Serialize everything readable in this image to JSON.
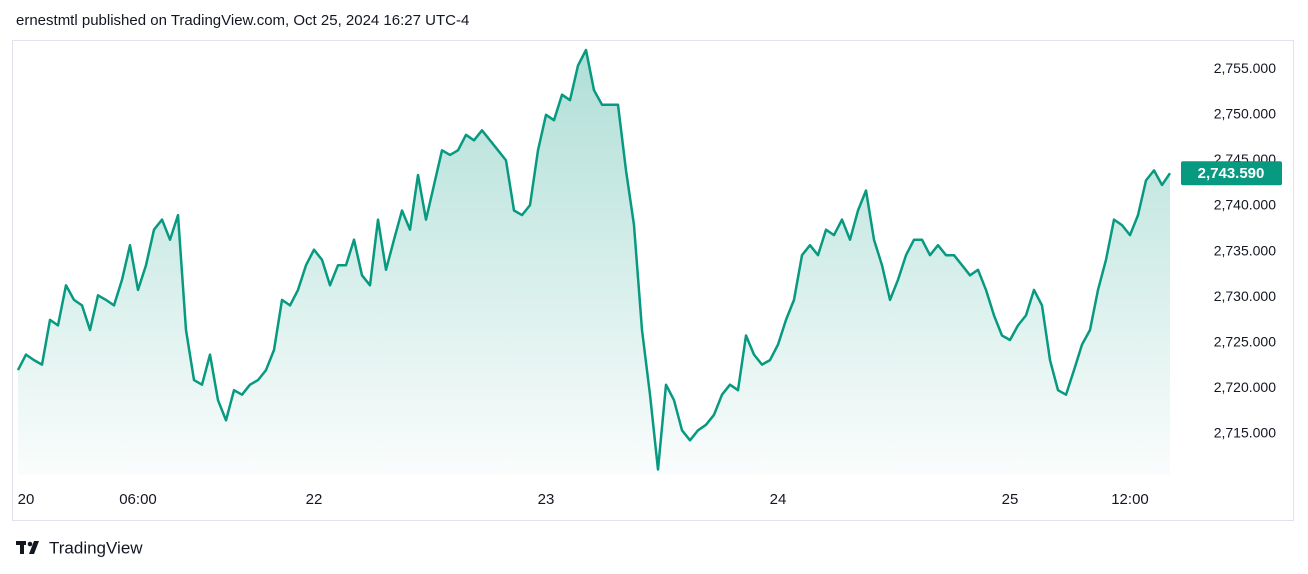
{
  "header": "ernestmtl published on TradingView.com, Oct 25, 2024 16:27 UTC-4",
  "footer": "TradingView",
  "chart_data": {
    "type": "area",
    "color": "#089981",
    "categories": [
      null,
      "20",
      null,
      null,
      null,
      null,
      null,
      null,
      null,
      null,
      null,
      null,
      null,
      null,
      null,
      "06:00",
      null,
      null,
      null,
      null,
      null,
      null,
      null,
      null,
      null,
      null,
      null,
      null,
      null,
      null,
      null,
      null,
      null,
      null,
      null,
      null,
      null,
      "22",
      null,
      null,
      null,
      null,
      null,
      null,
      null,
      null,
      null,
      null,
      null,
      null,
      null,
      null,
      null,
      null,
      null,
      null,
      null,
      null,
      null,
      null,
      null,
      null,
      null,
      null,
      null,
      null,
      "23",
      null,
      null,
      null,
      null,
      null,
      null,
      null,
      null,
      null,
      null,
      null,
      null,
      null,
      null,
      null,
      null,
      null,
      null,
      null,
      null,
      null,
      null,
      null,
      null,
      null,
      null,
      null,
      null,
      "24",
      null,
      null,
      null,
      null,
      null,
      null,
      null,
      null,
      null,
      null,
      null,
      null,
      null,
      null,
      null,
      null,
      null,
      null,
      null,
      null,
      null,
      null,
      null,
      null,
      null,
      null,
      null,
      null,
      "25",
      null,
      null,
      null,
      null,
      null,
      null,
      null,
      null,
      null,
      null,
      null,
      null,
      null,
      null,
      "12:00",
      null,
      null,
      null,
      null,
      null
    ],
    "values": [
      2722.0,
      2723.7,
      2723.1,
      2722.6,
      2727.5,
      2726.9,
      2731.3,
      2729.7,
      2729.1,
      2726.4,
      2730.2,
      2729.7,
      2729.1,
      2731.9,
      2735.7,
      2730.8,
      2733.5,
      2737.4,
      2738.5,
      2736.3,
      2739.0,
      2726.4,
      2720.9,
      2720.4,
      2723.7,
      2718.7,
      2716.5,
      2719.8,
      2719.3,
      2720.4,
      2720.9,
      2722.0,
      2724.2,
      2729.7,
      2729.1,
      2730.8,
      2733.5,
      2735.2,
      2734.1,
      2731.3,
      2733.5,
      2733.5,
      2736.3,
      2732.4,
      2731.3,
      2738.5,
      2733.0,
      2736.3,
      2739.5,
      2737.4,
      2743.4,
      2738.5,
      2742.3,
      2746.1,
      2745.6,
      2746.1,
      2747.8,
      2747.2,
      2748.3,
      2747.2,
      2746.1,
      2745.0,
      2739.5,
      2739.0,
      2740.1,
      2746.1,
      2750.0,
      2749.4,
      2752.2,
      2751.6,
      2755.4,
      2757.1,
      2752.7,
      2751.1,
      2751.1,
      2751.1,
      2743.9,
      2737.9,
      2726.4,
      2719.3,
      2711.1,
      2720.4,
      2718.7,
      2715.4,
      2714.3,
      2715.4,
      2716.0,
      2717.1,
      2719.3,
      2720.4,
      2719.8,
      2725.8,
      2723.7,
      2722.6,
      2723.1,
      2724.8,
      2727.5,
      2729.7,
      2734.6,
      2735.7,
      2734.6,
      2737.4,
      2736.8,
      2738.5,
      2736.3,
      2739.5,
      2741.7,
      2736.3,
      2733.5,
      2729.7,
      2731.9,
      2734.6,
      2736.3,
      2736.3,
      2734.6,
      2735.7,
      2734.6,
      2734.6,
      2733.5,
      2732.4,
      2733.0,
      2730.8,
      2728.0,
      2725.8,
      2725.3,
      2726.9,
      2728.0,
      2730.8,
      2729.1,
      2723.1,
      2719.8,
      2719.3,
      2722.0,
      2724.8,
      2726.4,
      2730.8,
      2734.1,
      2738.5,
      2737.9,
      2736.8,
      2739.0,
      2742.8,
      2743.9,
      2742.3,
      2743.59
    ],
    "last_price": {
      "value": 2743.59,
      "label": "2,743.590"
    },
    "ylim": [
      2709.4,
      2758.2
    ],
    "yticks": [
      {
        "value": 2715,
        "label": "2,715.000"
      },
      {
        "value": 2720,
        "label": "2,720.000"
      },
      {
        "value": 2725,
        "label": "2,725.000"
      },
      {
        "value": 2730,
        "label": "2,730.000"
      },
      {
        "value": 2735,
        "label": "2,735.000"
      },
      {
        "value": 2740,
        "label": "2,740.000"
      },
      {
        "value": 2745,
        "label": "2,745.000"
      },
      {
        "value": 2750,
        "label": "2,750.000"
      },
      {
        "value": 2755,
        "label": "2,755.000"
      }
    ],
    "grid": false
  }
}
